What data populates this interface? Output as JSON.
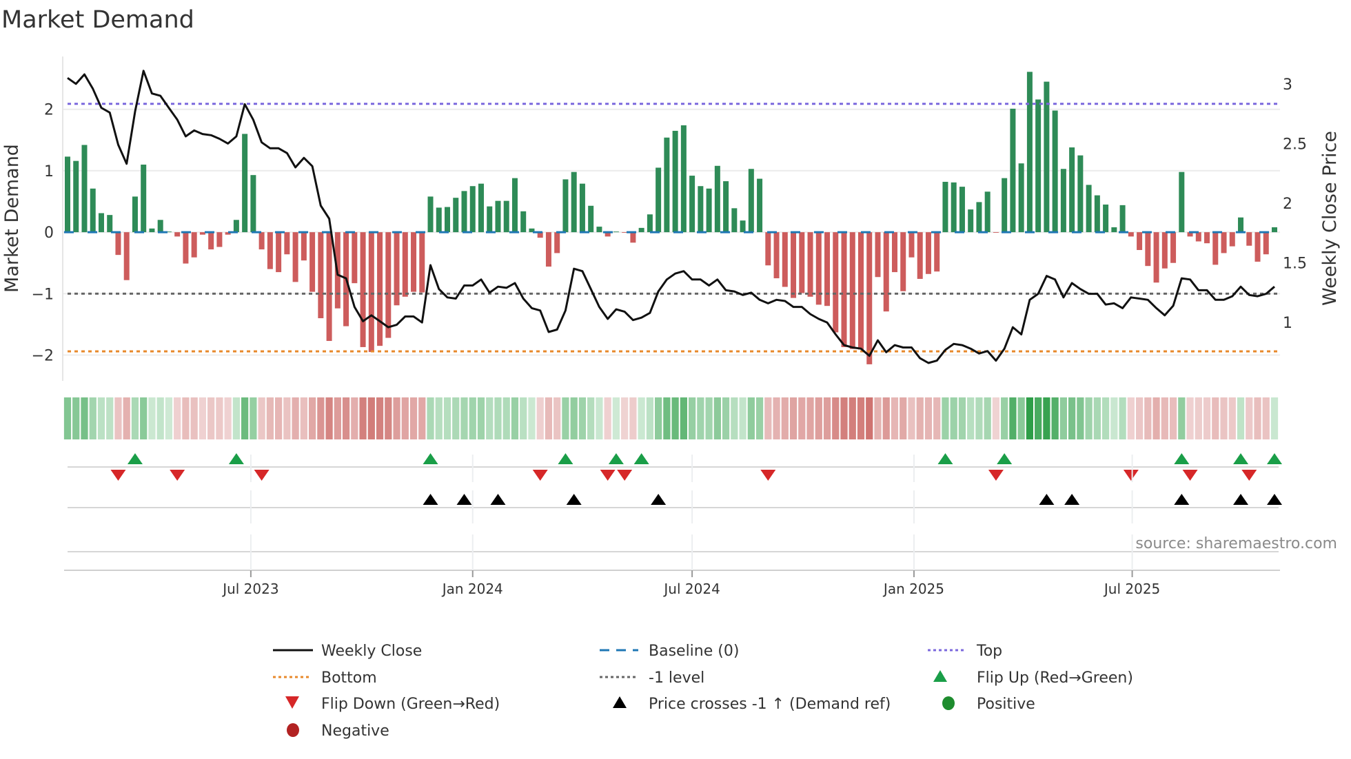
{
  "chart_data": {
    "type": "bar",
    "title": "Market Demand",
    "ylabel": "Market Demand",
    "y2label": "Weekly Close Price",
    "x_start": "2023-01-30",
    "frequency": "weekly",
    "ylim": [
      -2.42,
      2.86
    ],
    "y2lim": [
      0.51,
      3.23
    ],
    "yticks": [
      -2,
      -1,
      0,
      1,
      2
    ],
    "ytick_labels": [
      "−2",
      "−1",
      "0",
      "1",
      "2"
    ],
    "y2ticks": [
      1,
      1.5,
      2,
      2.5,
      3
    ],
    "y2tick_labels": [
      "1",
      "1.5",
      "2",
      "2.5",
      "3"
    ],
    "xticks": [
      {
        "date": "2023-07-01",
        "label": "Jul 2023"
      },
      {
        "date": "2024-01-01",
        "label": "Jan 2024"
      },
      {
        "date": "2024-07-01",
        "label": "Jul 2024"
      },
      {
        "date": "2025-01-01",
        "label": "Jan 2025"
      },
      {
        "date": "2025-07-01",
        "label": "Jul 2025"
      }
    ],
    "levels": {
      "top": 2.09,
      "bottom": -1.94,
      "minus_one": -1,
      "baseline": 0
    },
    "demand": [
      1.23,
      1.16,
      1.42,
      0.71,
      0.31,
      0.28,
      -0.37,
      -0.78,
      0.58,
      1.1,
      0.06,
      0.2,
      0.01,
      -0.07,
      -0.51,
      -0.41,
      -0.04,
      -0.28,
      -0.24,
      -0.04,
      0.2,
      1.6,
      0.93,
      -0.28,
      -0.6,
      -0.65,
      -0.36,
      -0.81,
      -0.46,
      -0.97,
      -1.4,
      -1.77,
      -1.24,
      -1.53,
      -0.83,
      -1.87,
      -1.95,
      -1.85,
      -1.72,
      -1.19,
      -1.05,
      -0.97,
      -0.98,
      0.58,
      0.4,
      0.41,
      0.56,
      0.67,
      0.75,
      0.79,
      0.42,
      0.51,
      0.51,
      0.88,
      0.34,
      0.06,
      -0.09,
      -0.56,
      -0.34,
      0.86,
      0.98,
      0.79,
      0.43,
      0.09,
      -0.07,
      0.01,
      -0.01,
      -0.17,
      0.07,
      0.29,
      1.05,
      1.54,
      1.65,
      1.74,
      0.92,
      0.75,
      0.71,
      1.08,
      0.83,
      0.39,
      0.19,
      1.03,
      0.87,
      -0.54,
      -0.75,
      -0.89,
      -1.07,
      -0.99,
      -1.05,
      -1.18,
      -1.2,
      -1.63,
      -1.87,
      -1.9,
      -1.91,
      -2.15,
      -0.73,
      -1.29,
      -0.65,
      -0.96,
      -0.41,
      -0.76,
      -0.68,
      -0.64,
      0.82,
      0.81,
      0.74,
      0.37,
      0.49,
      0.66,
      -0.01,
      0.88,
      2.01,
      1.12,
      2.61,
      2.16,
      2.45,
      1.98,
      1.03,
      1.38,
      1.25,
      0.77,
      0.6,
      0.45,
      0.08,
      0.44,
      -0.07,
      -0.29,
      -0.55,
      -0.82,
      -0.59,
      -0.5,
      0.98,
      -0.07,
      -0.15,
      -0.18,
      -0.53,
      -0.34,
      -0.23,
      0.24,
      -0.22,
      -0.48,
      -0.36,
      0.08
    ],
    "weekly_close": [
      3.05,
      3.0,
      3.08,
      2.96,
      2.8,
      2.76,
      2.49,
      2.33,
      2.77,
      3.11,
      2.92,
      2.9,
      2.8,
      2.7,
      2.56,
      2.61,
      2.58,
      2.57,
      2.54,
      2.5,
      2.56,
      2.83,
      2.7,
      2.51,
      2.46,
      2.46,
      2.42,
      2.3,
      2.38,
      2.31,
      1.98,
      1.87,
      1.4,
      1.37,
      1.13,
      1.01,
      1.06,
      1.01,
      0.96,
      0.98,
      1.05,
      1.05,
      1.0,
      1.48,
      1.28,
      1.21,
      1.2,
      1.31,
      1.31,
      1.36,
      1.25,
      1.3,
      1.29,
      1.33,
      1.2,
      1.12,
      1.1,
      0.92,
      0.94,
      1.1,
      1.45,
      1.43,
      1.28,
      1.13,
      1.03,
      1.11,
      1.09,
      1.02,
      1.04,
      1.08,
      1.26,
      1.36,
      1.41,
      1.43,
      1.36,
      1.36,
      1.31,
      1.36,
      1.27,
      1.26,
      1.23,
      1.25,
      1.19,
      1.16,
      1.19,
      1.18,
      1.13,
      1.13,
      1.07,
      1.03,
      1.0,
      0.9,
      0.81,
      0.79,
      0.78,
      0.72,
      0.85,
      0.75,
      0.81,
      0.79,
      0.79,
      0.7,
      0.66,
      0.68,
      0.77,
      0.82,
      0.81,
      0.78,
      0.74,
      0.76,
      0.68,
      0.78,
      0.96,
      0.9,
      1.19,
      1.24,
      1.39,
      1.36,
      1.21,
      1.33,
      1.28,
      1.24,
      1.24,
      1.15,
      1.16,
      1.12,
      1.21,
      1.2,
      1.19,
      1.12,
      1.06,
      1.14,
      1.37,
      1.36,
      1.27,
      1.27,
      1.19,
      1.19,
      1.22,
      1.3,
      1.23,
      1.22,
      1.24,
      1.3
    ],
    "price_cross_up_weeks": [
      43,
      47,
      51,
      60,
      70,
      116,
      119,
      132,
      139,
      143
    ],
    "colors": {
      "positive_bar": "#2e8b57",
      "negative_bar": "#cd5c5c",
      "line": "#111111",
      "baseline": "#1f77b4",
      "top": "#7b68dd",
      "bottom": "#e8892b",
      "minus_one": "#666666",
      "flip_up": "#1a9e48",
      "flip_down": "#d62728",
      "cross": "#000000",
      "positive_dot": "#1e8c2e",
      "negative_dot": "#b22222"
    },
    "legend": {
      "placement": "bottom",
      "items": [
        {
          "label": "Weekly Close",
          "symbol": "line"
        },
        {
          "label": "Baseline (0)",
          "symbol": "dash"
        },
        {
          "label": "Top",
          "symbol": "dot"
        },
        {
          "label": "Bottom",
          "symbol": "dot"
        },
        {
          "label": "-1 level",
          "symbol": "dot"
        },
        {
          "label": "Flip Up (Red→Green)",
          "symbol": "triangle-up"
        },
        {
          "label": "Flip Down (Green→Red)",
          "symbol": "triangle-down"
        },
        {
          "label": "Price crosses -1 ↑ (Demand ref)",
          "symbol": "triangle-up"
        },
        {
          "label": "Positive",
          "symbol": "circle"
        },
        {
          "label": "Negative",
          "symbol": "circle"
        }
      ]
    },
    "source": "source: sharemaestro.com"
  }
}
